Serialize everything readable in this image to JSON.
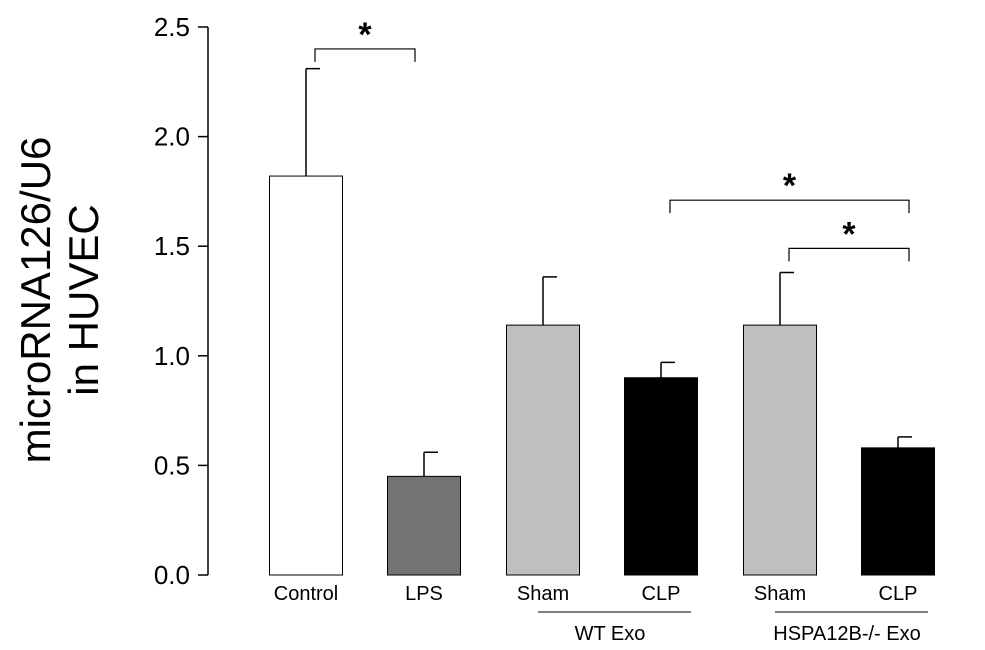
{
  "chart_data": {
    "type": "bar",
    "title": "",
    "ylabel_lines": [
      "microRNA126/U6",
      "in HUVEC"
    ],
    "ylim": [
      0,
      2.5
    ],
    "yticks": [
      "0.0",
      "0.5",
      "1.0",
      "1.5",
      "2.0",
      "2.5"
    ],
    "categories": [
      "Control",
      "LPS",
      "Sham",
      "CLP",
      "Sham",
      "CLP"
    ],
    "values": [
      1.82,
      0.45,
      1.14,
      0.9,
      1.14,
      0.58
    ],
    "errors": [
      0.49,
      0.11,
      0.22,
      0.07,
      0.24,
      0.05
    ],
    "bar_colors": [
      "#ffffff",
      "#737373",
      "#bfbfbf",
      "#000000",
      "#bfbfbf",
      "#000000"
    ],
    "groups": [
      {
        "label": "WT Exo",
        "from": 2,
        "to": 3
      },
      {
        "label": "HSPA12B-/- Exo",
        "from": 4,
        "to": 5
      }
    ],
    "significance": [
      {
        "from": 0,
        "to": 1,
        "label": "*",
        "level": 2.4
      },
      {
        "from": 3,
        "to": 5,
        "label": "*",
        "level": 1.71
      },
      {
        "from": 4,
        "to": 5,
        "label": "*",
        "level": 1.49
      }
    ],
    "grid": false,
    "legend": "none"
  }
}
